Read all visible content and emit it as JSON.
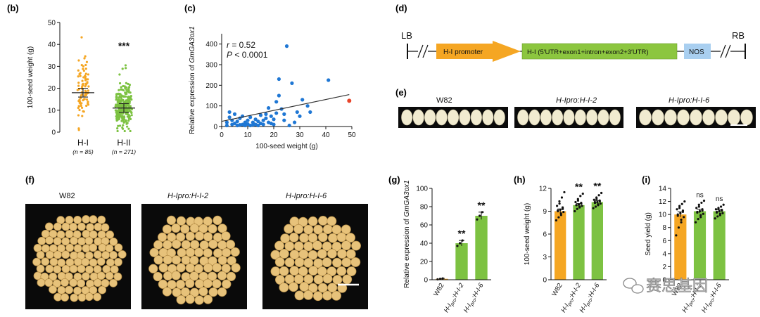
{
  "panels": {
    "b": {
      "label": "(b)"
    },
    "c": {
      "label": "(c)"
    },
    "d": {
      "label": "(d)"
    },
    "e": {
      "label": "(e)"
    },
    "f": {
      "label": "(f)"
    },
    "g": {
      "label": "(g)"
    },
    "h": {
      "label": "(h)"
    },
    "i": {
      "label": "(i)"
    }
  },
  "construct": {
    "lb": "LB",
    "rb": "RB",
    "promoter": "H-I promoter",
    "gene": "H-I (5′UTR+exon1+intron+exon2+3′UTR)",
    "terminator": "NOS",
    "colors": {
      "promoter": "#f5a623",
      "gene": "#8cc63f",
      "terminator": "#a9cff0"
    }
  },
  "photo_labels": {
    "e": [
      "W82",
      "H-Ipro:H-I-2",
      "H-Ipro:H-I-6"
    ],
    "f": [
      "W82",
      "H-Ipro:H-I-2",
      "H-Ipro:H-I-6"
    ]
  },
  "watermark": "赛思基因",
  "chart_data": [
    {
      "id": "b",
      "type": "scatter",
      "ylabel": "100-seed weight (g)",
      "ylim": [
        0,
        50
      ],
      "yticks": [
        0,
        10,
        20,
        30,
        40,
        50
      ],
      "categories": [
        "H-I",
        "H-II"
      ],
      "n_labels": [
        "(n = 85)",
        "(n = 271)"
      ],
      "means": [
        18,
        11
      ],
      "errors": [
        2,
        2
      ],
      "significance": [
        "",
        "***"
      ],
      "colors": [
        "#f5a623",
        "#7dc242"
      ]
    },
    {
      "id": "c",
      "type": "scatter",
      "xlabel": "100-seed weight (g)",
      "ylabel": "Relative expression of GmGA3ox1",
      "xlim": [
        0,
        50
      ],
      "ylim": [
        0,
        450
      ],
      "xticks": [
        0,
        10,
        20,
        30,
        40,
        50
      ],
      "yticks": [
        0,
        100,
        200,
        300,
        400
      ],
      "annotation_r": "r = 0.52",
      "annotation_p": "P < 0.0001",
      "points": [
        [
          2,
          5
        ],
        [
          2,
          20
        ],
        [
          3,
          45
        ],
        [
          3,
          70
        ],
        [
          4,
          10
        ],
        [
          4,
          30
        ],
        [
          5,
          15
        ],
        [
          5,
          60
        ],
        [
          6,
          5
        ],
        [
          6,
          25
        ],
        [
          7,
          40
        ],
        [
          7,
          8
        ],
        [
          8,
          10
        ],
        [
          8,
          50
        ],
        [
          9,
          20
        ],
        [
          9,
          5
        ],
        [
          10,
          30
        ],
        [
          10,
          12
        ],
        [
          11,
          5
        ],
        [
          11,
          45
        ],
        [
          12,
          20
        ],
        [
          12,
          8
        ],
        [
          13,
          35
        ],
        [
          13,
          10
        ],
        [
          14,
          5
        ],
        [
          14,
          25
        ],
        [
          15,
          55
        ],
        [
          15,
          15
        ],
        [
          16,
          30
        ],
        [
          16,
          10
        ],
        [
          17,
          40
        ],
        [
          17,
          60
        ],
        [
          18,
          90
        ],
        [
          18,
          20
        ],
        [
          19,
          50
        ],
        [
          19,
          15
        ],
        [
          20,
          10
        ],
        [
          20,
          35
        ],
        [
          21,
          65
        ],
        [
          21,
          120
        ],
        [
          22,
          150
        ],
        [
          22,
          230
        ],
        [
          23,
          85
        ],
        [
          24,
          30
        ],
        [
          24,
          60
        ],
        [
          25,
          390
        ],
        [
          26,
          5
        ],
        [
          27,
          210
        ],
        [
          28,
          20
        ],
        [
          29,
          70
        ],
        [
          30,
          50
        ],
        [
          31,
          130
        ],
        [
          33,
          100
        ],
        [
          34,
          70
        ],
        [
          41,
          225
        ]
      ],
      "highlight": [
        49,
        125
      ],
      "trend": [
        [
          0,
          25
        ],
        [
          49,
          155
        ]
      ],
      "point_color": "#1f77d4",
      "highlight_color": "#e8442a"
    },
    {
      "id": "g",
      "type": "bar",
      "ylabel": "Relative expression of GmGA3ox1",
      "ylim": [
        0,
        100
      ],
      "yticks": [
        0,
        20,
        40,
        60,
        80,
        100
      ],
      "categories": [
        "W82",
        "H-Ipro:H-I-2",
        "H-Ipro:H-I-6"
      ],
      "values": [
        1,
        40,
        70
      ],
      "errors": [
        0.5,
        3,
        4
      ],
      "points": [
        [
          0.5,
          1,
          1.5
        ],
        [
          37,
          40,
          43
        ],
        [
          66,
          70,
          74
        ]
      ],
      "significance": [
        "",
        "**",
        "**"
      ],
      "colors": [
        "#f5a623",
        "#7dc242",
        "#7dc242"
      ]
    },
    {
      "id": "h",
      "type": "bar",
      "ylabel": "100-seed weight (g)",
      "ylim": [
        0,
        12
      ],
      "yticks": [
        0,
        3,
        6,
        9,
        12
      ],
      "categories": [
        "W82",
        "H-Ipro:H-I-2",
        "H-Ipro:H-I-6"
      ],
      "values": [
        9.0,
        9.8,
        10.2
      ],
      "errors": [
        0.3,
        0.2,
        0.2
      ],
      "points": [
        [
          7.8,
          8.2,
          8.5,
          8.7,
          8.9,
          9.0,
          9.1,
          9.2,
          9.3,
          9.5,
          9.7,
          10.0,
          10.3,
          10.8,
          11.5
        ],
        [
          9.0,
          9.3,
          9.5,
          9.6,
          9.7,
          9.8,
          9.8,
          9.9,
          10.0,
          10.1,
          10.2,
          10.4,
          10.6,
          11.0,
          11.3
        ],
        [
          9.4,
          9.6,
          9.8,
          9.9,
          10.0,
          10.1,
          10.2,
          10.2,
          10.3,
          10.4,
          10.5,
          10.6,
          10.8,
          11.1,
          11.4
        ]
      ],
      "significance": [
        "",
        "**",
        "**"
      ],
      "colors": [
        "#f5a623",
        "#7dc242",
        "#7dc242"
      ]
    },
    {
      "id": "i",
      "type": "bar",
      "ylabel": "Seed yield (g)",
      "ylim": [
        0,
        14
      ],
      "yticks": [
        0,
        2,
        4,
        6,
        8,
        10,
        12,
        14
      ],
      "categories": [
        "W82",
        "H-Ipro:H-I-2",
        "H-Ipro:H-I-6"
      ],
      "values": [
        10.0,
        10.5,
        10.5
      ],
      "errors": [
        0.4,
        0.3,
        0.2
      ],
      "points": [
        [
          6.8,
          8.0,
          8.8,
          9.2,
          9.6,
          9.8,
          10.0,
          10.2,
          10.4,
          10.6,
          10.8,
          11.0,
          11.3,
          11.6,
          12.0
        ],
        [
          8.8,
          9.3,
          9.6,
          9.9,
          10.1,
          10.3,
          10.4,
          10.5,
          10.6,
          10.8,
          11.0,
          11.2,
          11.5,
          11.8,
          12.1
        ],
        [
          9.4,
          9.7,
          9.9,
          10.1,
          10.2,
          10.3,
          10.4,
          10.5,
          10.6,
          10.7,
          10.8,
          10.9,
          11.0,
          11.2,
          11.5
        ]
      ],
      "significance": [
        "",
        "ns",
        "ns"
      ],
      "colors": [
        "#f5a623",
        "#7dc242",
        "#7dc242"
      ]
    }
  ]
}
